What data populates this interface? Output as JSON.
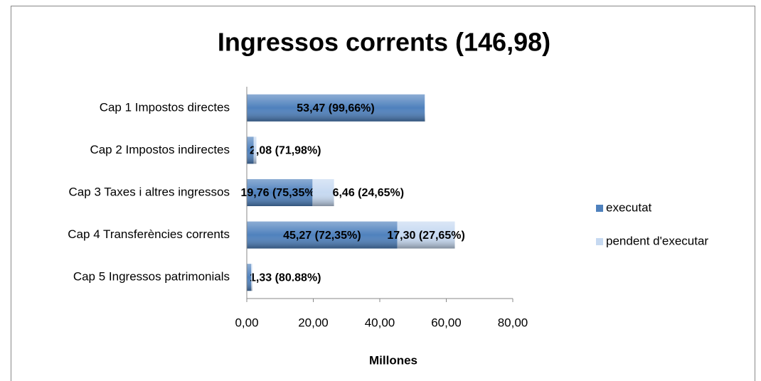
{
  "chart_data": {
    "type": "bar",
    "orientation": "horizontal",
    "stacked": true,
    "title": "Ingressos corrents (146,98)",
    "x_label": "Millones",
    "categories": [
      "Cap 1 Impostos directes",
      "Cap 2 Impostos indirectes",
      "Cap 3 Taxes i altres ingressos",
      "Cap 4 Transferències corrents",
      "Cap 5 Ingressos patrimonials"
    ],
    "series": [
      {
        "name": "executat",
        "color": "#4f81bd",
        "values": [
          53.47,
          2.08,
          19.76,
          45.27,
          1.33
        ],
        "value_labels": [
          "53,47 (99,66%)",
          "2,08 (71,98%)",
          "19,76 (75,35%)",
          "45,27 (72,35%)",
          "1,33 (80.88%)"
        ]
      },
      {
        "name": "pendent d'executar",
        "color": "#c6d9f1",
        "values": [
          0.18,
          0.81,
          6.46,
          17.3,
          0.31
        ],
        "value_labels": [
          null,
          null,
          "6,46 (24,65%)",
          "17,30 (27,65%)",
          null
        ]
      }
    ],
    "xlim": [
      0,
      80
    ],
    "xticks": [
      {
        "value": 0,
        "label": "0,00"
      },
      {
        "value": 20,
        "label": "20,00"
      },
      {
        "value": 40,
        "label": "40,00"
      },
      {
        "value": 60,
        "label": "60,00"
      },
      {
        "value": 80,
        "label": "80,00"
      }
    ],
    "legend": "right"
  }
}
